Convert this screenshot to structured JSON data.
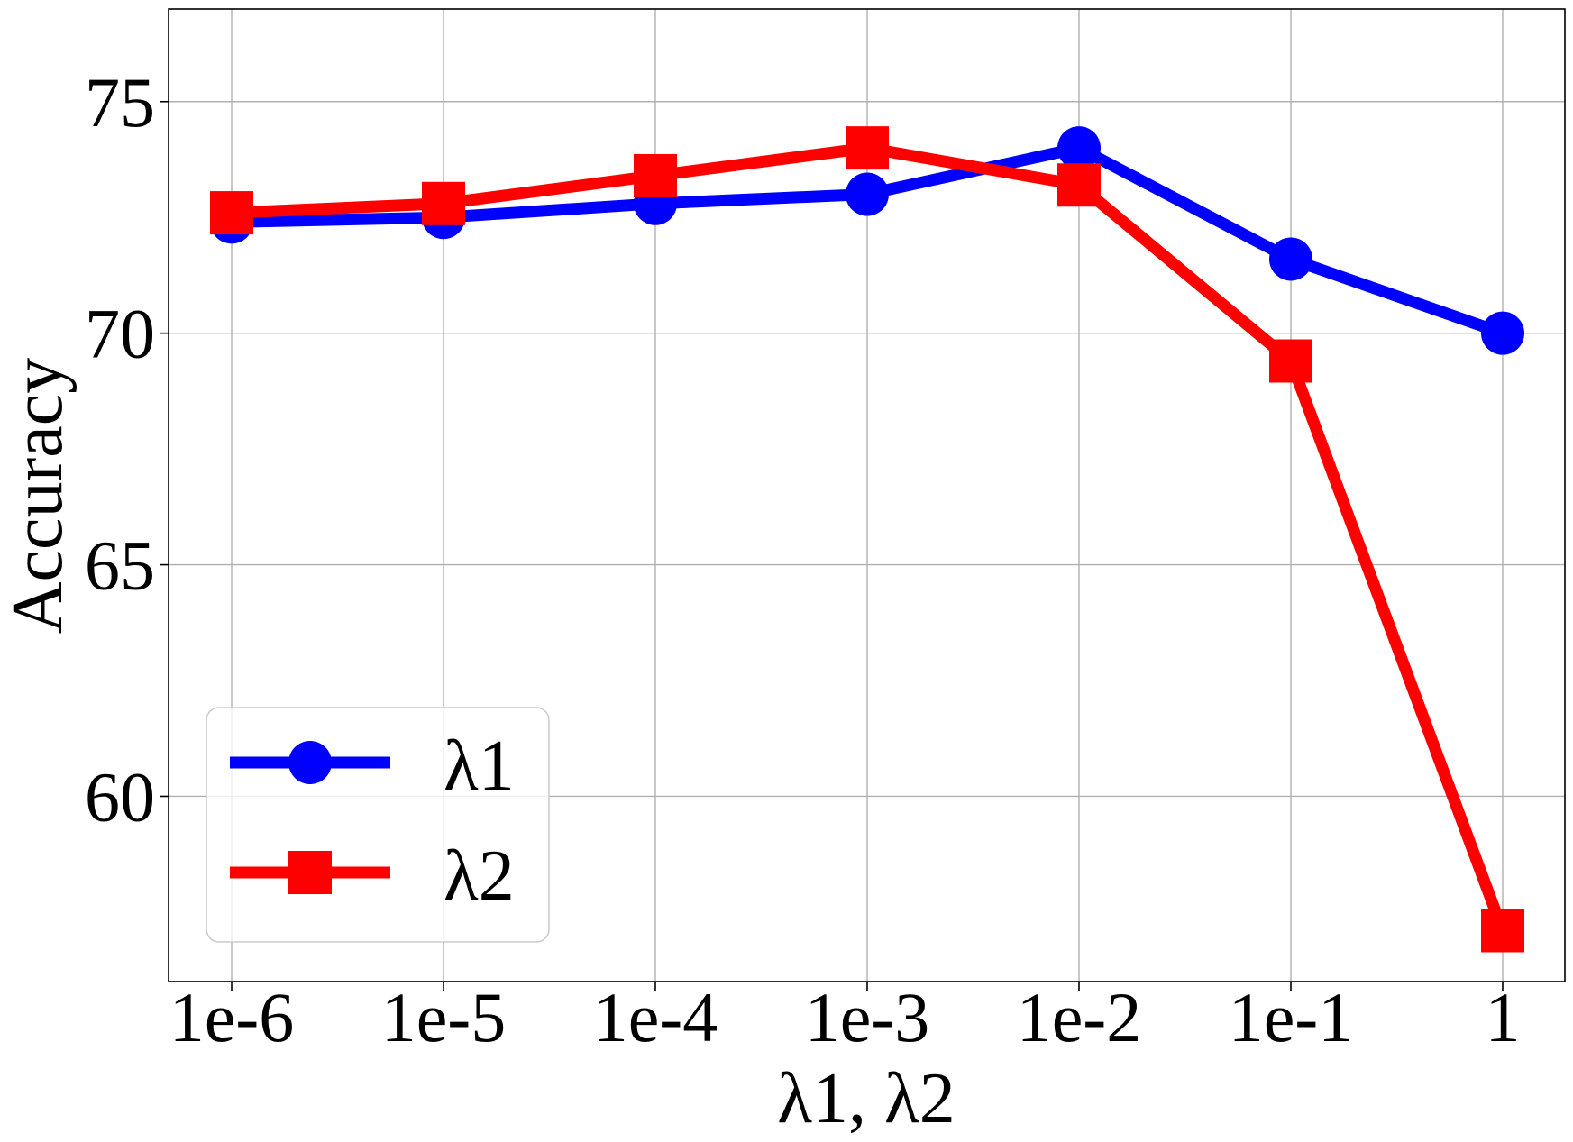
{
  "chart_data": {
    "type": "line",
    "title": "",
    "xlabel": "λ1, λ2",
    "ylabel": "Accuracy",
    "categories": [
      "1e-6",
      "1e-5",
      "1e-4",
      "1e-3",
      "1e-2",
      "1e-1",
      "1"
    ],
    "ylim": [
      56.0,
      77.0
    ],
    "yticks": [
      60,
      65,
      70,
      75
    ],
    "grid": true,
    "legend_position": "lower-left",
    "series": [
      {
        "name": "λ1",
        "color": "#0000ff",
        "marker": "circle",
        "values": [
          72.4,
          72.5,
          72.8,
          73.0,
          74.0,
          71.6,
          70.0
        ]
      },
      {
        "name": "λ2",
        "color": "#ff0000",
        "marker": "square",
        "values": [
          72.6,
          72.8,
          73.4,
          74.0,
          73.2,
          69.4,
          57.1
        ]
      }
    ]
  }
}
